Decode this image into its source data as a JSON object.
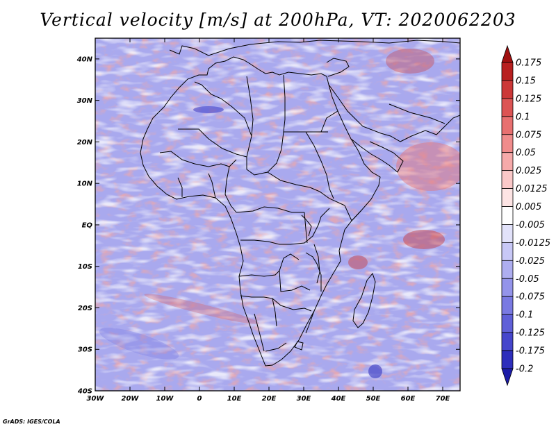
{
  "title": "Vertical velocity [m/s] at 200hPa, VT: 2020062203",
  "credit": "GrADS: IGES/COLA",
  "map": {
    "lon_range": [
      -30,
      75
    ],
    "lat_range": [
      -40,
      45
    ],
    "lat_ticks": [
      "40N",
      "30N",
      "20N",
      "10N",
      "EQ",
      "10S",
      "20S",
      "30S",
      "40S"
    ],
    "lat_tick_values": [
      40,
      30,
      20,
      10,
      0,
      -10,
      -20,
      -30,
      -40
    ],
    "lon_ticks": [
      "30W",
      "20W",
      "10W",
      "0",
      "10E",
      "20E",
      "30E",
      "40E",
      "50E",
      "60E",
      "70E"
    ],
    "lon_tick_values": [
      -30,
      -20,
      -10,
      0,
      10,
      20,
      30,
      40,
      50,
      60,
      70
    ]
  },
  "colorbar": {
    "labels": [
      "0.175",
      "0.15",
      "0.125",
      "0.1",
      "0.075",
      "0.05",
      "0.025",
      "0.0125",
      "0.005",
      "-0.005",
      "-0.0125",
      "-0.025",
      "-0.05",
      "-0.075",
      "-0.1",
      "-0.125",
      "-0.175",
      "-0.2"
    ],
    "colors": [
      "#a01010",
      "#b82020",
      "#cc3838",
      "#dc5454",
      "#e87070",
      "#f08c8c",
      "#f6aaaa",
      "#fac8c8",
      "#fde4e4",
      "#ffffff",
      "#e2e2fa",
      "#c8c8f6",
      "#aeaef0",
      "#9494ea",
      "#7a7ae2",
      "#6060d8",
      "#4646cc",
      "#2e2ebc",
      "#1c1ca8"
    ]
  }
}
